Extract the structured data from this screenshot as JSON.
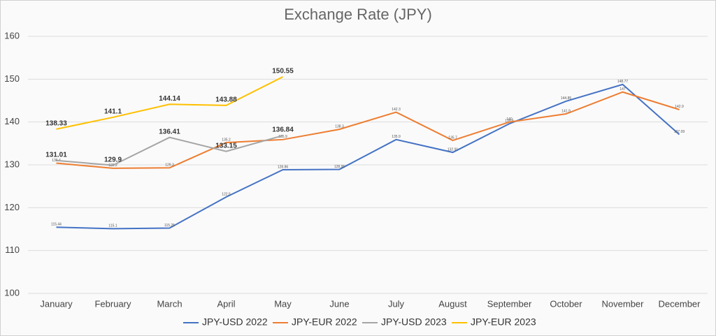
{
  "chart_data": {
    "type": "line",
    "title": "Exchange Rate (JPY)",
    "categories": [
      "January",
      "February",
      "March",
      "April",
      "May",
      "June",
      "July",
      "August",
      "September",
      "October",
      "November",
      "December"
    ],
    "series": [
      {
        "name": "JPY-USD 2022",
        "color": "#4472c4",
        "values": [
          115.44,
          115.1,
          115.25,
          122.5,
          128.86,
          128.95,
          135.9,
          132.91,
          139.6,
          144.85,
          148.77,
          137.09
        ]
      },
      {
        "name": "JPY-EUR 2022",
        "color": "#ed7d31",
        "values": [
          130.4,
          129.2,
          129.3,
          135.2,
          135.9,
          138.3,
          142.3,
          135.7,
          140.0,
          141.9,
          147,
          142.9
        ]
      },
      {
        "name": "JPY-USD 2023",
        "color": "#a5a5a5",
        "values": [
          131.01,
          129.9,
          136.41,
          133.15,
          136.84,
          null,
          null,
          null,
          null,
          null,
          null,
          null
        ]
      },
      {
        "name": "JPY-EUR 2023",
        "color": "#ffc000",
        "values": [
          138.33,
          141.1,
          144.14,
          143.88,
          150.55,
          null,
          null,
          null,
          null,
          null,
          null,
          null
        ]
      }
    ],
    "ylim": [
      100,
      160
    ],
    "yticks": [
      100,
      110,
      120,
      130,
      140,
      150,
      160
    ],
    "grid": true
  }
}
